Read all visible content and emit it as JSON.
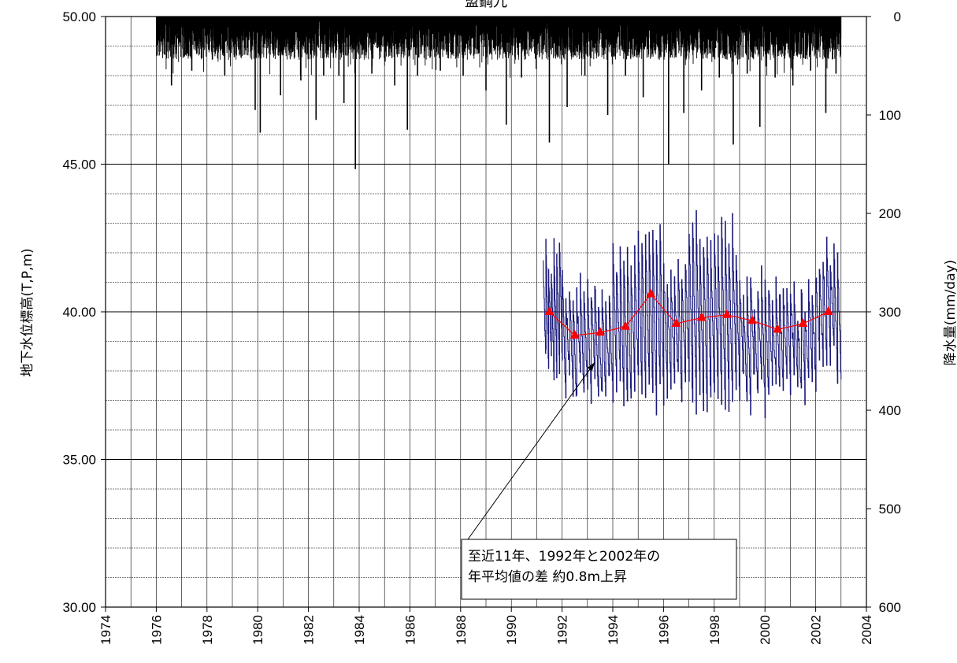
{
  "chart_data": {
    "type": "line",
    "title": "盟鋼九",
    "ylabel": "地下水位標高(T,P,m)",
    "y2label": "降水量(mm/day)",
    "xlim": [
      1974,
      2004
    ],
    "ylim": [
      30,
      50
    ],
    "y2lim": [
      0,
      600
    ],
    "y2_inverted": true,
    "x_ticks": [
      1974,
      1976,
      1978,
      1980,
      1982,
      1984,
      1986,
      1988,
      1990,
      1992,
      1994,
      1996,
      1998,
      2000,
      2002,
      2004
    ],
    "y_ticks": [
      "30.00",
      "35.00",
      "40.00",
      "45.00",
      "50.00"
    ],
    "y2_ticks": [
      0,
      100,
      200,
      300,
      400,
      500,
      600
    ],
    "grid": true,
    "series": [
      {
        "kind": "rain-bars",
        "color": "#000000",
        "x_start": 1976.0,
        "x_end": 2003.0,
        "peaks": [
          {
            "x": 1976.6,
            "y": 70
          },
          {
            "x": 1977.4,
            "y": 55
          },
          {
            "x": 1978.7,
            "y": 60
          },
          {
            "x": 1979.9,
            "y": 95
          },
          {
            "x": 1980.1,
            "y": 118
          },
          {
            "x": 1980.9,
            "y": 80
          },
          {
            "x": 1981.7,
            "y": 65
          },
          {
            "x": 1982.3,
            "y": 105
          },
          {
            "x": 1982.6,
            "y": 60
          },
          {
            "x": 1983.2,
            "y": 60
          },
          {
            "x": 1983.4,
            "y": 88
          },
          {
            "x": 1983.85,
            "y": 155
          },
          {
            "x": 1984.5,
            "y": 58
          },
          {
            "x": 1985.4,
            "y": 70
          },
          {
            "x": 1985.9,
            "y": 115
          },
          {
            "x": 1986.3,
            "y": 60
          },
          {
            "x": 1987.2,
            "y": 55
          },
          {
            "x": 1988.1,
            "y": 60
          },
          {
            "x": 1989.0,
            "y": 75
          },
          {
            "x": 1989.8,
            "y": 110
          },
          {
            "x": 1990.4,
            "y": 62
          },
          {
            "x": 1991.5,
            "y": 128
          },
          {
            "x": 1992.2,
            "y": 92
          },
          {
            "x": 1992.9,
            "y": 60
          },
          {
            "x": 1993.8,
            "y": 100
          },
          {
            "x": 1994.5,
            "y": 60
          },
          {
            "x": 1995.2,
            "y": 82
          },
          {
            "x": 1996.2,
            "y": 150
          },
          {
            "x": 1996.8,
            "y": 98
          },
          {
            "x": 1997.5,
            "y": 75
          },
          {
            "x": 1998.2,
            "y": 62
          },
          {
            "x": 1998.75,
            "y": 130
          },
          {
            "x": 1999.3,
            "y": 58
          },
          {
            "x": 1999.8,
            "y": 112
          },
          {
            "x": 2000.4,
            "y": 62
          },
          {
            "x": 2001.1,
            "y": 70
          },
          {
            "x": 2001.8,
            "y": 55
          },
          {
            "x": 2002.4,
            "y": 98
          },
          {
            "x": 2002.8,
            "y": 58
          }
        ]
      },
      {
        "kind": "groundwater-daily",
        "color": "#1a1a7a",
        "x_start": 1991.25,
        "x_end": 2003.0,
        "annual_ranges": [
          {
            "year": 1991,
            "low": 37.5,
            "high": 42.6
          },
          {
            "year": 1992,
            "low": 36.9,
            "high": 41.3
          },
          {
            "year": 1993,
            "low": 36.8,
            "high": 41.2
          },
          {
            "year": 1994,
            "low": 36.7,
            "high": 42.3
          },
          {
            "year": 1995,
            "low": 36.5,
            "high": 43.0
          },
          {
            "year": 1996,
            "low": 36.8,
            "high": 42.0
          },
          {
            "year": 1997,
            "low": 36.3,
            "high": 43.3
          },
          {
            "year": 1998,
            "low": 36.4,
            "high": 43.1
          },
          {
            "year": 1999,
            "low": 36.6,
            "high": 41.5
          },
          {
            "year": 2000,
            "low": 36.8,
            "high": 41.2
          },
          {
            "year": 2001,
            "low": 37.0,
            "high": 41.0
          },
          {
            "year": 2002,
            "low": 37.5,
            "high": 42.3
          }
        ]
      },
      {
        "kind": "annual-mean",
        "color": "#ff0000",
        "marker": "triangle",
        "x": [
          1991.5,
          1992.5,
          1993.5,
          1994.5,
          1995.5,
          1996.5,
          1997.5,
          1998.5,
          1999.5,
          2000.5,
          2001.5,
          2002.5
        ],
        "y": [
          40.0,
          39.2,
          39.3,
          39.5,
          40.6,
          39.6,
          39.8,
          39.9,
          39.7,
          39.4,
          39.6,
          40.0
        ]
      }
    ],
    "annotation": {
      "lines": [
        "至近11年、1992年と2002年の",
        "年平均値の差  約0.8m上昇"
      ],
      "arrow_to": {
        "x": 1993.3,
        "y": 38.3
      }
    }
  }
}
